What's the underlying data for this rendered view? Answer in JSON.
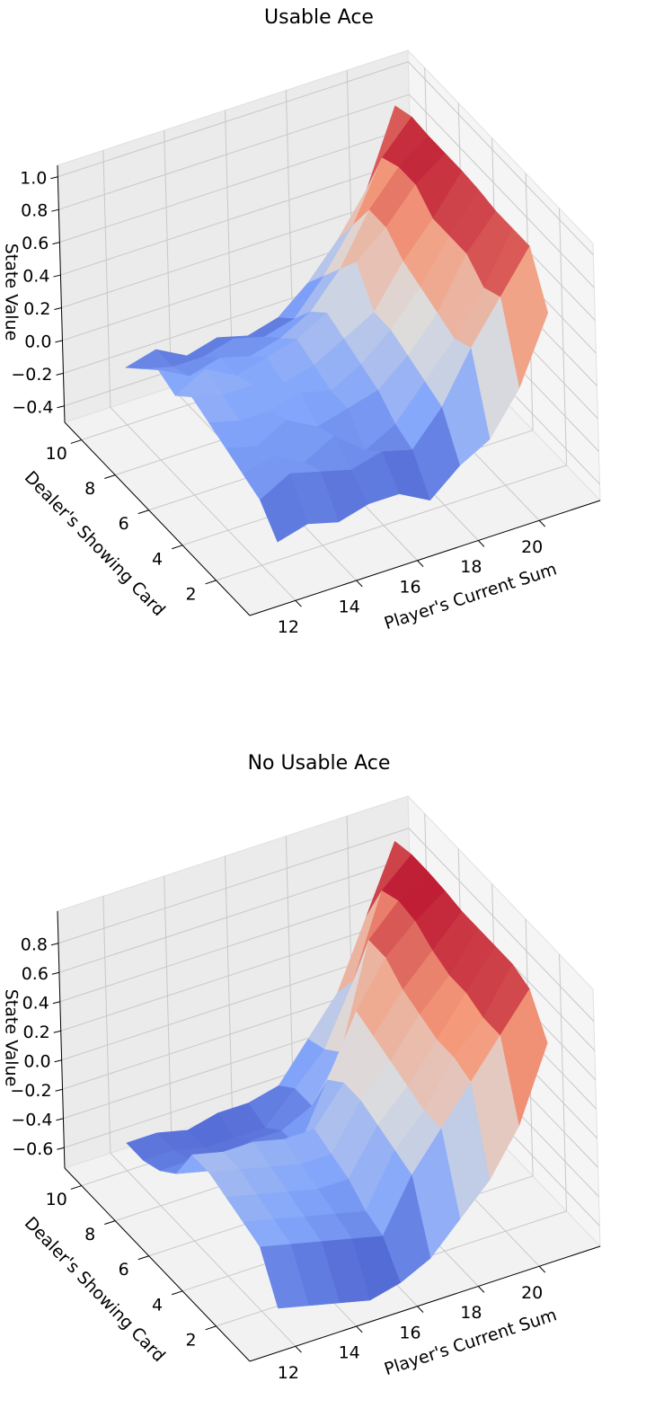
{
  "chart_data": [
    {
      "type": "surface",
      "title": "Usable Ace",
      "x_label": "Player's Current Sum",
      "y_label": "Dealer's Showing Card",
      "z_label": "State Value",
      "x": [
        12,
        13,
        14,
        15,
        16,
        17,
        18,
        19,
        20,
        21
      ],
      "y": [
        1,
        2,
        3,
        4,
        5,
        6,
        7,
        8,
        9,
        10
      ],
      "z": [
        [
          -0.25,
          -0.2,
          -0.25,
          -0.2,
          -0.2,
          -0.3,
          -0.15,
          -0.05,
          0.2,
          0.6
        ],
        [
          -0.1,
          0.0,
          -0.05,
          -0.1,
          -0.05,
          -0.1,
          0.1,
          0.4,
          0.65,
          0.9
        ],
        [
          -0.05,
          0.0,
          -0.1,
          0.0,
          -0.15,
          -0.05,
          0.15,
          0.35,
          0.6,
          0.9
        ],
        [
          0.0,
          -0.05,
          0.05,
          -0.05,
          0.0,
          0.05,
          0.2,
          0.4,
          0.7,
          0.9
        ],
        [
          0.05,
          0.0,
          0.0,
          0.05,
          0.0,
          0.1,
          0.25,
          0.45,
          0.7,
          0.92
        ],
        [
          0.1,
          0.05,
          0.05,
          0.0,
          0.05,
          0.15,
          0.25,
          0.5,
          0.7,
          0.93
        ],
        [
          0.0,
          0.1,
          0.0,
          0.05,
          0.1,
          0.2,
          0.45,
          0.6,
          0.8,
          0.93
        ],
        [
          0.05,
          -0.05,
          0.0,
          -0.05,
          0.0,
          0.1,
          0.3,
          0.6,
          0.8,
          0.93
        ],
        [
          -0.05,
          -0.1,
          -0.1,
          -0.05,
          -0.1,
          -0.05,
          0.15,
          0.4,
          0.75,
          0.94
        ],
        [
          -0.15,
          -0.1,
          -0.2,
          -0.15,
          -0.2,
          -0.15,
          0.0,
          0.2,
          0.45,
          0.9
        ]
      ],
      "xlim": [
        10.5,
        22
      ],
      "ylim": [
        0,
        11
      ],
      "zlim": [
        -0.5,
        1.07
      ],
      "xticks": [
        12,
        14,
        16,
        18,
        20
      ],
      "yticks": [
        2,
        4,
        6,
        8,
        10
      ],
      "zticks": [
        {
          "value": -0.4,
          "label": "−0.4"
        },
        {
          "value": -0.2,
          "label": "−0.2"
        },
        {
          "value": 0,
          "label": "0.0"
        },
        0.2,
        0.4,
        0.6,
        0.8,
        {
          "value": 1,
          "label": "1.0"
        }
      ],
      "colormap": "coolwarm",
      "grid": true
    },
    {
      "type": "surface",
      "title": "No Usable Ace",
      "x_label": "Player's Current Sum",
      "y_label": "Dealer's Showing Card",
      "z_label": "State Value",
      "x": [
        12,
        13,
        14,
        15,
        16,
        17,
        18,
        19,
        20,
        21
      ],
      "y": [
        1,
        2,
        3,
        4,
        5,
        6,
        7,
        8,
        9,
        10
      ],
      "z": [
        [
          -0.6,
          -0.65,
          -0.7,
          -0.75,
          -0.7,
          -0.6,
          -0.4,
          -0.2,
          0.1,
          0.6
        ],
        [
          -0.3,
          -0.35,
          -0.4,
          -0.45,
          -0.5,
          -0.15,
          0.1,
          0.35,
          0.6,
          0.85
        ],
        [
          -0.25,
          -0.3,
          -0.35,
          -0.4,
          -0.45,
          -0.1,
          0.1,
          0.4,
          0.6,
          0.9
        ],
        [
          -0.2,
          -0.25,
          -0.3,
          -0.35,
          -0.35,
          -0.05,
          0.15,
          0.4,
          0.65,
          0.9
        ],
        [
          -0.15,
          -0.2,
          -0.25,
          -0.3,
          -0.3,
          0.0,
          0.2,
          0.45,
          0.65,
          0.9
        ],
        [
          -0.15,
          -0.2,
          -0.2,
          -0.25,
          -0.25,
          0.0,
          0.25,
          0.5,
          0.7,
          0.9
        ],
        [
          -0.4,
          -0.45,
          -0.5,
          -0.45,
          -0.5,
          -0.1,
          0.3,
          0.6,
          0.78,
          0.92
        ],
        [
          -0.5,
          -0.5,
          -0.55,
          -0.5,
          -0.5,
          -0.4,
          -0.1,
          0.6,
          0.8,
          0.93
        ],
        [
          -0.55,
          -0.55,
          -0.6,
          -0.6,
          -0.6,
          -0.4,
          -0.2,
          0.2,
          0.75,
          0.93
        ],
        [
          -0.55,
          -0.55,
          -0.6,
          -0.55,
          -0.55,
          -0.5,
          -0.25,
          0.0,
          0.45,
          0.9
        ]
      ],
      "xlim": [
        10.5,
        22
      ],
      "ylim": [
        0,
        11
      ],
      "zlim": [
        -0.74,
        1.02
      ],
      "xticks": [
        12,
        14,
        16,
        18,
        20
      ],
      "yticks": [
        2,
        4,
        6,
        8,
        10
      ],
      "zticks": [
        {
          "value": -0.6,
          "label": "−0.6"
        },
        {
          "value": -0.4,
          "label": "−0.4"
        },
        {
          "value": -0.2,
          "label": "−0.2"
        },
        {
          "value": 0,
          "label": "0.0"
        },
        0.2,
        0.4,
        0.6,
        0.8
      ],
      "colormap": "coolwarm",
      "grid": true
    }
  ]
}
